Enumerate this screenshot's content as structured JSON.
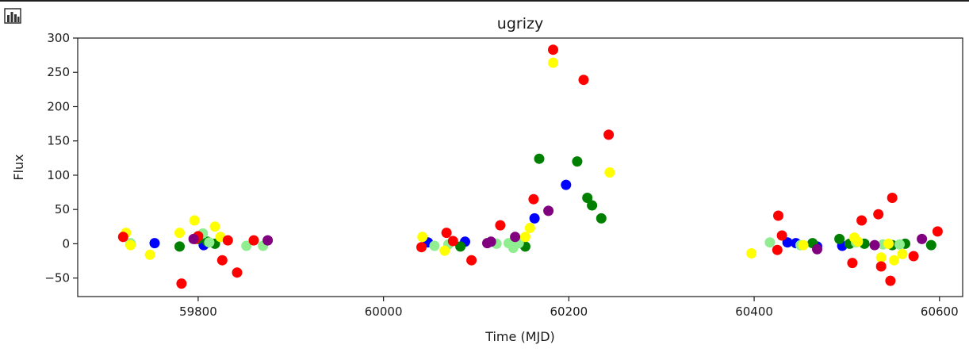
{
  "toolbar": {
    "icon": "bar-chart-icon"
  },
  "chart_data": {
    "type": "scatter",
    "title": "ugrizy",
    "xlabel": "Time (MJD)",
    "ylabel": "Flux",
    "xlim": [
      59670,
      60625
    ],
    "ylim": [
      -77,
      300
    ],
    "xticks": [
      59800,
      60000,
      60200,
      60400,
      60600
    ],
    "yticks": [
      -50,
      0,
      50,
      100,
      150,
      200,
      250,
      300
    ],
    "grid": false,
    "series": [
      {
        "color": "#0000ff",
        "points": [
          [
            59753,
            1
          ],
          [
            59806,
            -2
          ],
          [
            59811,
            2
          ],
          [
            60048,
            2
          ],
          [
            60088,
            3
          ],
          [
            60163,
            37
          ],
          [
            60197,
            86
          ],
          [
            60436,
            2
          ],
          [
            60445,
            1
          ],
          [
            60468,
            -4
          ],
          [
            60495,
            -3
          ]
        ]
      },
      {
        "color": "#008000",
        "points": [
          [
            59780,
            -4
          ],
          [
            59800,
            7
          ],
          [
            59810,
            3
          ],
          [
            59818,
            0
          ],
          [
            60083,
            -4
          ],
          [
            60153,
            -4
          ],
          [
            60168,
            124
          ],
          [
            60209,
            120
          ],
          [
            60220,
            67
          ],
          [
            60225,
            56
          ],
          [
            60235,
            37
          ],
          [
            60463,
            1
          ],
          [
            60492,
            7
          ],
          [
            60503,
            0
          ],
          [
            60519,
            0
          ],
          [
            60549,
            -2
          ],
          [
            60563,
            0
          ],
          [
            60591,
            -2
          ]
        ]
      },
      {
        "color": "#90ee90",
        "points": [
          [
            59727,
            1
          ],
          [
            59805,
            15
          ],
          [
            59812,
            2
          ],
          [
            59852,
            -3
          ],
          [
            59870,
            -3
          ],
          [
            60055,
            -3
          ],
          [
            60070,
            -1
          ],
          [
            60122,
            0
          ],
          [
            60135,
            1
          ],
          [
            60140,
            -6
          ],
          [
            60146,
            1
          ],
          [
            60417,
            2
          ],
          [
            60450,
            -2
          ],
          [
            60510,
            2
          ],
          [
            60539,
            -1
          ],
          [
            60557,
            -1
          ]
        ]
      },
      {
        "color": "#ffff00",
        "points": [
          [
            59722,
            16
          ],
          [
            59727,
            -2
          ],
          [
            59748,
            -16
          ],
          [
            59780,
            16
          ],
          [
            59796,
            34
          ],
          [
            59818,
            25
          ],
          [
            59824,
            10
          ],
          [
            60042,
            10
          ],
          [
            60066,
            -10
          ],
          [
            60153,
            10
          ],
          [
            60158,
            23
          ],
          [
            60183,
            264
          ],
          [
            60244,
            104
          ],
          [
            60397,
            -14
          ],
          [
            60453,
            -2
          ],
          [
            60508,
            9
          ],
          [
            60512,
            3
          ],
          [
            60537,
            -20
          ],
          [
            60545,
            0
          ],
          [
            60551,
            -24
          ],
          [
            60560,
            -15
          ]
        ]
      },
      {
        "color": "#ff0000",
        "points": [
          [
            59719,
            10
          ],
          [
            59782,
            -58
          ],
          [
            59797,
            7
          ],
          [
            59800,
            11
          ],
          [
            59826,
            -24
          ],
          [
            59832,
            5
          ],
          [
            59842,
            -42
          ],
          [
            59860,
            5
          ],
          [
            60041,
            -5
          ],
          [
            60068,
            16
          ],
          [
            60075,
            4
          ],
          [
            60095,
            -24
          ],
          [
            60126,
            27
          ],
          [
            60162,
            65
          ],
          [
            60183,
            283
          ],
          [
            60216,
            239
          ],
          [
            60243,
            159
          ],
          [
            60425,
            -9
          ],
          [
            60426,
            41
          ],
          [
            60430,
            12
          ],
          [
            60506,
            -28
          ],
          [
            60516,
            34
          ],
          [
            60534,
            43
          ],
          [
            60537,
            -33
          ],
          [
            60547,
            -54
          ],
          [
            60549,
            67
          ],
          [
            60572,
            -18
          ],
          [
            60598,
            18
          ]
        ]
      },
      {
        "color": "#800080",
        "points": [
          [
            59795,
            7
          ],
          [
            59875,
            5
          ],
          [
            60112,
            1
          ],
          [
            60116,
            3
          ],
          [
            60142,
            10
          ],
          [
            60178,
            48
          ],
          [
            60468,
            -8
          ],
          [
            60530,
            -2
          ],
          [
            60581,
            7
          ]
        ]
      }
    ]
  }
}
